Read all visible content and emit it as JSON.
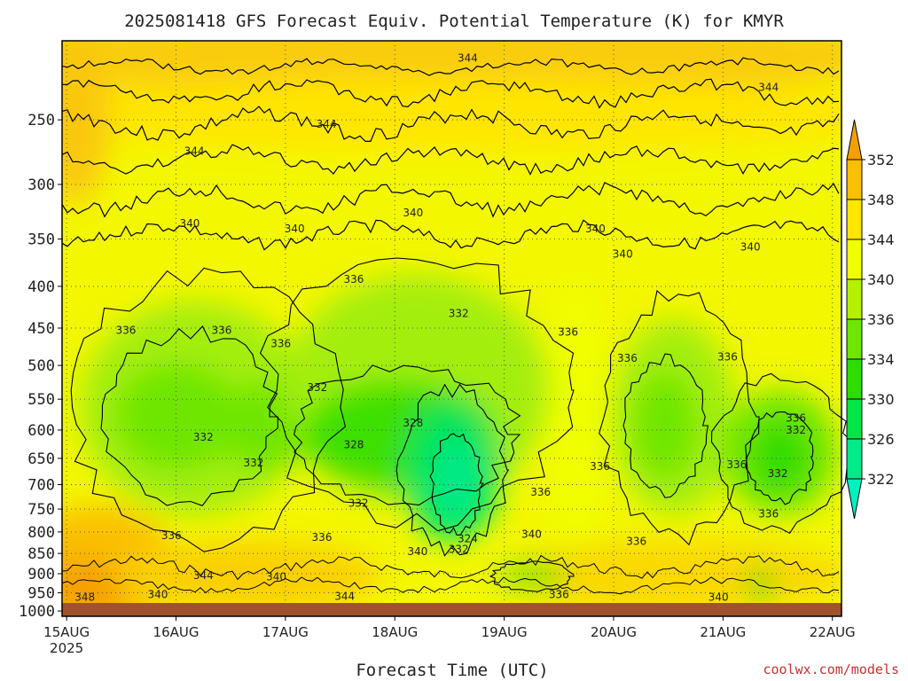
{
  "chart_data": {
    "type": "heatmap",
    "title": "2025081418 GFS Forecast Equiv. Potential Temperature (K) for KMYR",
    "xlabel": "Forecast Time (UTC)",
    "ylabel": "",
    "credit": "coolwx.com/models",
    "y_scale": "log-pressure",
    "y_ticks": [
      250,
      300,
      350,
      400,
      450,
      500,
      550,
      600,
      650,
      700,
      750,
      800,
      850,
      900,
      950,
      1000
    ],
    "y_range": [
      200,
      1015
    ],
    "x_ticks": [
      {
        "label": "15AUG",
        "sublabel": "2025",
        "t": 0
      },
      {
        "label": "16AUG",
        "t": 24
      },
      {
        "label": "17AUG",
        "t": 48
      },
      {
        "label": "18AUG",
        "t": 72
      },
      {
        "label": "19AUG",
        "t": 96
      },
      {
        "label": "20AUG",
        "t": 120
      },
      {
        "label": "21AUG",
        "t": 144
      },
      {
        "label": "22AUG",
        "t": 168
      }
    ],
    "x_range": [
      -1,
      170
    ],
    "grid": true,
    "colorbar": {
      "placement": "right",
      "labels": [
        "352",
        "348",
        "344",
        "340",
        "336",
        "334",
        "330",
        "326",
        "322"
      ],
      "colors": [
        "#f5a000",
        "#fac000",
        "#ffe600",
        "#f0ff00",
        "#b4f000",
        "#6ee600",
        "#2edc00",
        "#00e646",
        "#00ea8a",
        "#00f0c0"
      ]
    },
    "contour_labels": [
      {
        "text": "344",
        "t": 88,
        "p": 210
      },
      {
        "text": "344",
        "t": 154,
        "p": 228
      },
      {
        "text": "344",
        "t": 57,
        "p": 253
      },
      {
        "text": "344",
        "t": 28,
        "p": 273
      },
      {
        "text": "340",
        "t": 27,
        "p": 335
      },
      {
        "text": "340",
        "t": 50,
        "p": 340
      },
      {
        "text": "340",
        "t": 76,
        "p": 325
      },
      {
        "text": "340",
        "t": 116,
        "p": 340
      },
      {
        "text": "340",
        "t": 122,
        "p": 365
      },
      {
        "text": "340",
        "t": 150,
        "p": 358
      },
      {
        "text": "336",
        "t": 63,
        "p": 392
      },
      {
        "text": "332",
        "t": 86,
        "p": 432
      },
      {
        "text": "336",
        "t": 13,
        "p": 453
      },
      {
        "text": "336",
        "t": 34,
        "p": 453
      },
      {
        "text": "336",
        "t": 47,
        "p": 470
      },
      {
        "text": "336",
        "t": 110,
        "p": 455
      },
      {
        "text": "336",
        "t": 123,
        "p": 490
      },
      {
        "text": "336",
        "t": 145,
        "p": 488
      },
      {
        "text": "332",
        "t": 55,
        "p": 532
      },
      {
        "text": "328",
        "t": 76,
        "p": 588
      },
      {
        "text": "328",
        "t": 63,
        "p": 625
      },
      {
        "text": "332",
        "t": 30,
        "p": 612
      },
      {
        "text": "332",
        "t": 41,
        "p": 658
      },
      {
        "text": "336",
        "t": 117,
        "p": 665
      },
      {
        "text": "336",
        "t": 147,
        "p": 662
      },
      {
        "text": "332",
        "t": 156,
        "p": 678
      },
      {
        "text": "336",
        "t": 160,
        "p": 580
      },
      {
        "text": "332",
        "t": 160,
        "p": 600
      },
      {
        "text": "336",
        "t": 104,
        "p": 715
      },
      {
        "text": "332",
        "t": 64,
        "p": 738
      },
      {
        "text": "336",
        "t": 23,
        "p": 808
      },
      {
        "text": "336",
        "t": 56,
        "p": 812
      },
      {
        "text": "336",
        "t": 154,
        "p": 760
      },
      {
        "text": "336",
        "t": 125,
        "p": 822
      },
      {
        "text": "324",
        "t": 88,
        "p": 815
      },
      {
        "text": "332",
        "t": 86,
        "p": 840
      },
      {
        "text": "340",
        "t": 77,
        "p": 845
      },
      {
        "text": "340",
        "t": 102,
        "p": 805
      },
      {
        "text": "344",
        "t": 30,
        "p": 905
      },
      {
        "text": "340",
        "t": 46,
        "p": 908
      },
      {
        "text": "340",
        "t": 20,
        "p": 955
      },
      {
        "text": "344",
        "t": 61,
        "p": 960
      },
      {
        "text": "348",
        "t": 4,
        "p": 962
      },
      {
        "text": "336",
        "t": 108,
        "p": 955
      },
      {
        "text": "340",
        "t": 143,
        "p": 962
      }
    ]
  }
}
